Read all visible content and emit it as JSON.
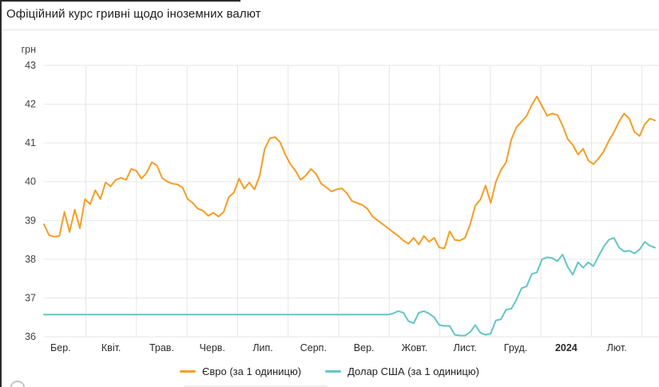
{
  "header": {
    "title": "Офіційний курс гривні щодо іноземних валют"
  },
  "colors": {
    "euro_line": "#F59E24",
    "usd_line": "#64C5C7",
    "gridline": "#E6E6E6",
    "axis_text": "#424242",
    "title_text": "#1C1C1C"
  },
  "chart_data": {
    "type": "line",
    "title": "Офіційний курс гривні щодо іноземних валют",
    "xlabel": "",
    "ylabel": "грн",
    "ylim": [
      36,
      43
    ],
    "y_ticks": [
      43,
      42,
      41,
      40,
      39,
      38,
      37,
      36
    ],
    "x_ticks": [
      "Бер.",
      "Квіт.",
      "Трав.",
      "Черв.",
      "Лип.",
      "Серп.",
      "Вер.",
      "Жовт.",
      "Лист.",
      "Груд.",
      "2024",
      "Лют."
    ],
    "bold_tick": "2024",
    "grid": true,
    "legend_position": "bottom",
    "x_note": "points evenly spaced, March 2023 through late February 2024",
    "series": [
      {
        "id": "euro-line",
        "name": "Євро (за 1 одиницю)",
        "color": "#F59E24",
        "values": [
          38.9,
          38.62,
          38.58,
          38.6,
          39.22,
          38.7,
          39.28,
          38.8,
          39.55,
          39.42,
          39.78,
          39.55,
          39.98,
          39.88,
          40.05,
          40.1,
          40.05,
          40.33,
          40.28,
          40.08,
          40.23,
          40.5,
          40.42,
          40.1,
          40.0,
          39.95,
          39.93,
          39.85,
          39.55,
          39.45,
          39.3,
          39.25,
          39.12,
          39.2,
          39.1,
          39.22,
          39.6,
          39.72,
          40.08,
          39.82,
          39.98,
          39.8,
          40.15,
          40.85,
          41.12,
          41.15,
          41.02,
          40.7,
          40.45,
          40.28,
          40.05,
          40.16,
          40.33,
          40.2,
          39.95,
          39.85,
          39.75,
          39.8,
          39.83,
          39.7,
          39.5,
          39.45,
          39.4,
          39.3,
          39.1,
          39.0,
          38.9,
          38.8,
          38.7,
          38.6,
          38.48,
          38.4,
          38.55,
          38.38,
          38.6,
          38.45,
          38.55,
          38.3,
          38.28,
          38.72,
          38.5,
          38.48,
          38.55,
          38.9,
          39.38,
          39.54,
          39.9,
          39.45,
          39.99,
          40.3,
          40.5,
          41.08,
          41.4,
          41.55,
          41.7,
          41.98,
          42.2,
          41.95,
          41.7,
          41.76,
          41.72,
          41.45,
          41.1,
          40.95,
          40.7,
          40.85,
          40.55,
          40.45,
          40.6,
          40.78,
          41.05,
          41.28,
          41.55,
          41.76,
          41.62,
          41.28,
          41.18,
          41.48,
          41.63,
          41.58
        ]
      },
      {
        "id": "usd-line",
        "name": "Долар США (за 1 одиницю)",
        "color": "#64C5C7",
        "values": [
          36.57,
          36.57,
          36.57,
          36.57,
          36.57,
          36.57,
          36.57,
          36.57,
          36.57,
          36.57,
          36.57,
          36.57,
          36.57,
          36.57,
          36.57,
          36.57,
          36.57,
          36.57,
          36.57,
          36.57,
          36.57,
          36.57,
          36.57,
          36.57,
          36.57,
          36.57,
          36.57,
          36.57,
          36.57,
          36.57,
          36.57,
          36.57,
          36.57,
          36.57,
          36.57,
          36.57,
          36.57,
          36.57,
          36.57,
          36.57,
          36.57,
          36.57,
          36.57,
          36.57,
          36.57,
          36.57,
          36.57,
          36.57,
          36.57,
          36.57,
          36.57,
          36.57,
          36.57,
          36.57,
          36.57,
          36.57,
          36.57,
          36.57,
          36.57,
          36.57,
          36.57,
          36.57,
          36.57,
          36.57,
          36.57,
          36.57,
          36.57,
          36.57,
          36.6,
          36.66,
          36.62,
          36.4,
          36.35,
          36.62,
          36.66,
          36.6,
          36.5,
          36.3,
          36.28,
          36.28,
          36.05,
          36.03,
          36.03,
          36.12,
          36.3,
          36.1,
          36.05,
          36.08,
          36.42,
          36.45,
          36.7,
          36.72,
          36.95,
          37.25,
          37.3,
          37.62,
          37.66,
          38.0,
          38.05,
          38.03,
          37.95,
          38.12,
          37.8,
          37.6,
          37.92,
          37.78,
          37.92,
          37.82,
          38.08,
          38.32,
          38.5,
          38.55,
          38.3,
          38.2,
          38.22,
          38.15,
          38.25,
          38.45,
          38.35,
          38.3
        ]
      }
    ]
  },
  "legend": {
    "euro_label": "Євро (за 1 одиницю)",
    "usd_label": "Долар США (за 1 одиницю)"
  }
}
